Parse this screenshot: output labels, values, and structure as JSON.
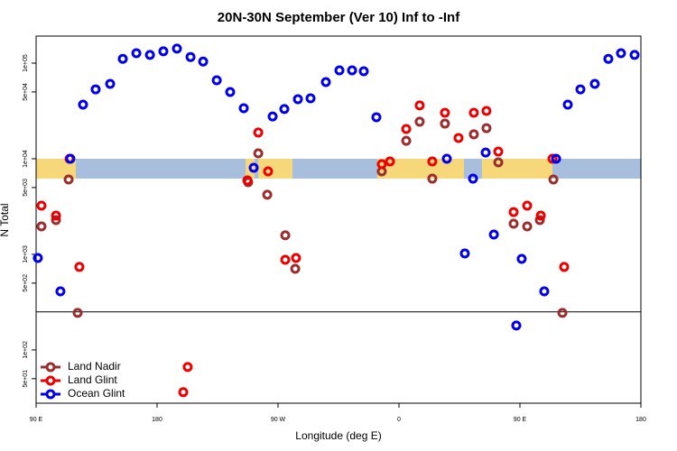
{
  "chart_data": {
    "type": "scatter",
    "title": "20N-30N September (Ver 10)   Inf to -Inf",
    "x_label": "Longitude (deg E)",
    "y_label": "N Total",
    "log_y": true,
    "xlim": [
      90,
      540
    ],
    "ylim": [
      27.7,
      192000
    ],
    "xticks": [
      {
        "value": 90,
        "label": "90 E"
      },
      {
        "value": 180,
        "label": "180"
      },
      {
        "value": 270,
        "label": "90 W"
      },
      {
        "value": 360,
        "label": "0"
      },
      {
        "value": 450,
        "label": "90 E"
      },
      {
        "value": 540,
        "label": "180"
      }
    ],
    "yticks": [
      {
        "value": 100000,
        "label": "1e+05"
      },
      {
        "value": 50000,
        "label": "5e+04"
      },
      {
        "value": 10000,
        "label": "1e+04"
      },
      {
        "value": 5000,
        "label": "5e+03"
      },
      {
        "value": 1000,
        "label": "1e+03"
      },
      {
        "value": 500,
        "label": "5e+02"
      },
      {
        "value": 100,
        "label": "1e+02"
      },
      {
        "value": 50,
        "label": "5e+01"
      }
    ],
    "hline": 250,
    "legend": "bottom-left",
    "series": [
      {
        "name": "Land Nadir",
        "color": "#9b2d2d",
        "x": [
          94.0,
          104.8,
          114.2,
          120.9,
          247.8,
          255.3,
          262.0,
          275.4,
          282.8,
          347.2,
          365.4,
          375.4,
          384.8,
          394.2,
          415.7,
          425.1,
          433.9,
          445.3,
          455.4,
          464.8,
          474.9,
          481.6
        ],
        "values": [
          1960,
          2280,
          6070,
          244,
          5690,
          11400,
          4200,
          1580,
          706,
          7380,
          15400,
          24400,
          6190,
          23300,
          18000,
          20900,
          9160,
          2090,
          1960,
          2280,
          6070,
          244
        ]
      },
      {
        "name": "Land Glint",
        "color": "#ee0000",
        "x": [
          94.0,
          104.8,
          114.9,
          122.2,
          199.5,
          202.8,
          247.2,
          255.3,
          262.6,
          275.4,
          283.4,
          347.2,
          353.3,
          365.4,
          375.4,
          384.8,
          394.2,
          404.3,
          415.7,
          425.1,
          433.9,
          445.3,
          455.4,
          465.5,
          474.2,
          482.9
        ],
        "values": [
          3230,
          2540,
          10000,
          738,
          36.1,
          66.2,
          5940,
          18800,
          7380,
          877,
          916,
          8770,
          9370,
          20500,
          36100,
          9370,
          30300,
          16500,
          30300,
          31600,
          11900,
          2770,
          3230,
          2540,
          10000,
          738
        ]
      },
      {
        "name": "Ocean Glint",
        "color": "#0000ee",
        "x": [
          91.3,
          108.1,
          115.5,
          124.9,
          134.3,
          145.1,
          154.5,
          164.6,
          174.7,
          184.7,
          194.8,
          204.9,
          214.3,
          224.4,
          234.4,
          244.5,
          251.9,
          266.0,
          274.7,
          284.8,
          294.2,
          305.6,
          315.7,
          325.1,
          333.8,
          343.2,
          395.6,
          409.0,
          415.1,
          424.5,
          430.6,
          447.3,
          451.3,
          468.1,
          476.9,
          485.6,
          495.0,
          505.7,
          515.8,
          525.2,
          535.3
        ],
        "values": [
          916,
          410,
          10000,
          36800,
          53200,
          60700,
          111000,
          127000,
          122000,
          133000,
          142000,
          116000,
          104000,
          66200,
          49900,
          33800,
          8050,
          27700,
          33100,
          42000,
          42900,
          63400,
          84100,
          84100,
          82200,
          27200,
          10000,
          1020,
          6190,
          11600,
          1610,
          180,
          897,
          410,
          10000,
          36800,
          53200,
          60700,
          111000,
          127000,
          122000
        ]
      }
    ]
  }
}
